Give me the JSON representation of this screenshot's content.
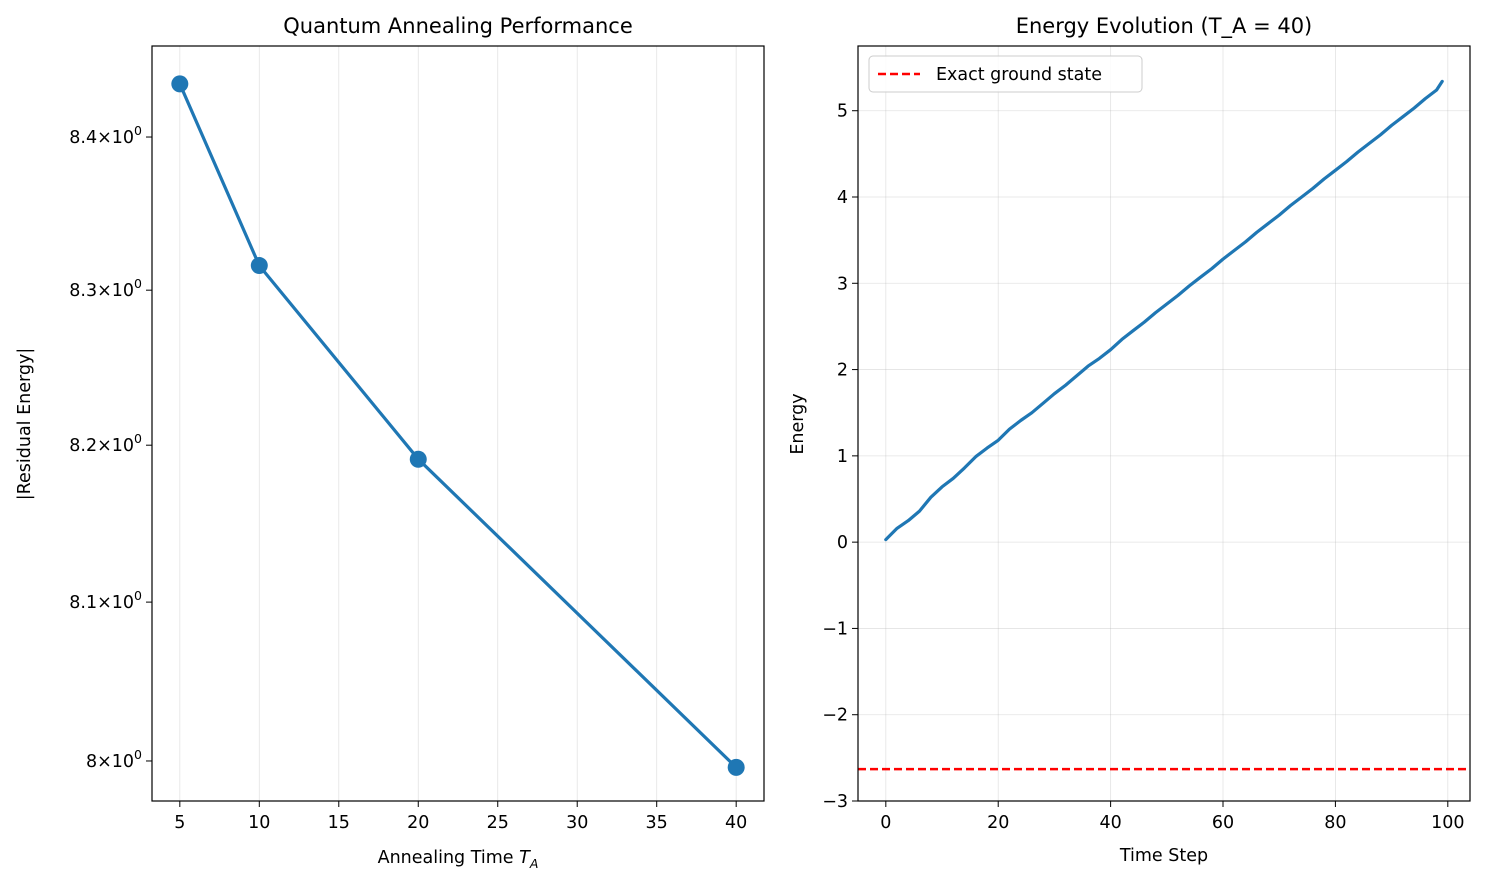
{
  "chart_data": [
    {
      "type": "line",
      "title": "Quantum Annealing Performance",
      "xlabel_main": "Annealing Time ",
      "xlabel_var": "T",
      "xlabel_sub": "A",
      "ylabel": "|Residual Energy|",
      "yscale": "log",
      "xlim": [
        3.25,
        41.75
      ],
      "ylim": [
        7.975,
        8.46
      ],
      "x_ticks": [
        5,
        10,
        15,
        20,
        25,
        30,
        35,
        40
      ],
      "y_ticks": [
        {
          "value": 8.0,
          "mant": "8",
          "base": "10",
          "exp": "0"
        },
        {
          "value": 8.1,
          "mant": "8.1",
          "base": "10",
          "exp": "0"
        },
        {
          "value": 8.2,
          "mant": "8.2",
          "base": "10",
          "exp": "0"
        },
        {
          "value": 8.3,
          "mant": "8.3",
          "base": "10",
          "exp": "0"
        },
        {
          "value": 8.4,
          "mant": "8.4",
          "base": "10",
          "exp": "0"
        }
      ],
      "grid": "x",
      "markers": true,
      "color": "#1f77b4",
      "series": [
        {
          "x": [
            5,
            10,
            20,
            40
          ],
          "y": [
            8.435,
            8.316,
            8.191,
            7.996
          ]
        }
      ]
    },
    {
      "type": "line",
      "title": "Energy Evolution (T_A = 40)",
      "xlabel": "Time Step",
      "ylabel": "Energy",
      "xlim": [
        -4.95,
        103.95
      ],
      "ylim": [
        -3.0,
        5.75
      ],
      "x_ticks": [
        0,
        20,
        40,
        60,
        80,
        100
      ],
      "y_ticks": [
        -3,
        -2,
        -1,
        0,
        1,
        2,
        3,
        4,
        5
      ],
      "grid": "both",
      "legend_position": "top-left",
      "color": "#1f77b4",
      "series": [
        {
          "x": [
            0,
            2,
            4,
            6,
            8,
            10,
            12,
            14,
            16,
            18,
            20,
            22,
            24,
            26,
            28,
            30,
            32,
            34,
            36,
            38,
            40,
            42,
            44,
            46,
            48,
            50,
            52,
            54,
            56,
            58,
            60,
            62,
            64,
            66,
            68,
            70,
            72,
            74,
            76,
            78,
            80,
            82,
            84,
            86,
            88,
            90,
            92,
            94,
            96,
            98,
            99
          ],
          "y": [
            0.03,
            0.16,
            0.25,
            0.36,
            0.52,
            0.64,
            0.74,
            0.86,
            0.99,
            1.09,
            1.18,
            1.31,
            1.41,
            1.5,
            1.61,
            1.72,
            1.82,
            1.93,
            2.04,
            2.13,
            2.23,
            2.35,
            2.45,
            2.55,
            2.66,
            2.76,
            2.86,
            2.97,
            3.07,
            3.17,
            3.28,
            3.38,
            3.48,
            3.59,
            3.69,
            3.79,
            3.9,
            4.0,
            4.1,
            4.21,
            4.31,
            4.41,
            4.52,
            4.62,
            4.72,
            4.83,
            4.93,
            5.03,
            5.14,
            5.24,
            5.34
          ]
        },
        {
          "name": "Exact ground state",
          "style": "dashed",
          "color": "#ff0000",
          "hline": -2.63
        }
      ]
    }
  ]
}
